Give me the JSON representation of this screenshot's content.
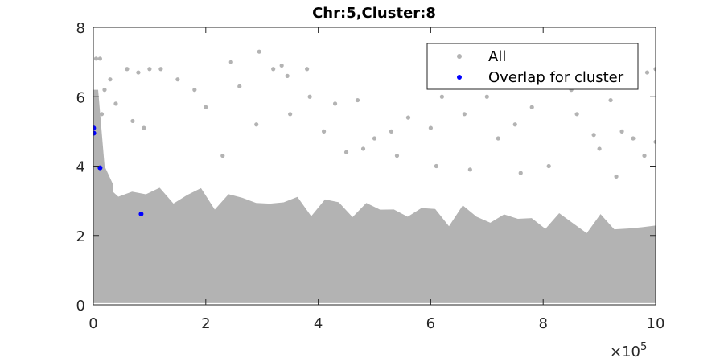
{
  "chart_data": {
    "type": "scatter",
    "title": "Chr:5,Cluster:8",
    "xlabel": "",
    "ylabel": "",
    "xlim": [
      0,
      1000000
    ],
    "ylim": [
      0,
      8
    ],
    "x_ticks": [
      0,
      200000,
      400000,
      600000,
      800000,
      1000000
    ],
    "x_tick_labels": [
      "0",
      "2",
      "4",
      "6",
      "8",
      "10"
    ],
    "y_ticks": [
      0,
      2,
      4,
      6,
      8
    ],
    "y_tick_labels": [
      "0",
      "2",
      "4",
      "6",
      "8"
    ],
    "x_exponent_label": {
      "base": "×10",
      "exponent": "5"
    },
    "grid": false,
    "legend_position": "top-right",
    "series": [
      {
        "name": "All",
        "color": "#b3b3b3",
        "values": [
          [
            5000,
            7.1
          ],
          [
            12000,
            7.1
          ],
          [
            30000,
            6.5
          ],
          [
            60000,
            6.8
          ],
          [
            80000,
            6.7
          ],
          [
            100000,
            6.8
          ],
          [
            120000,
            6.8
          ],
          [
            150000,
            6.5
          ],
          [
            245000,
            7.0
          ],
          [
            260000,
            6.3
          ],
          [
            295000,
            7.3
          ],
          [
            320000,
            6.8
          ],
          [
            335000,
            6.9
          ],
          [
            345000,
            6.6
          ],
          [
            380000,
            6.8
          ],
          [
            385000,
            6.0
          ],
          [
            410000,
            5.0
          ],
          [
            430000,
            5.8
          ],
          [
            470000,
            5.9
          ],
          [
            500000,
            4.8
          ],
          [
            530000,
            5.0
          ],
          [
            560000,
            5.4
          ],
          [
            600000,
            5.1
          ],
          [
            620000,
            6.0
          ],
          [
            660000,
            5.5
          ],
          [
            700000,
            6.0
          ],
          [
            720000,
            4.8
          ],
          [
            750000,
            5.2
          ],
          [
            780000,
            5.7
          ],
          [
            830000,
            6.5
          ],
          [
            850000,
            6.2
          ],
          [
            860000,
            5.5
          ],
          [
            875000,
            6.4
          ],
          [
            890000,
            4.9
          ],
          [
            900000,
            4.5
          ],
          [
            920000,
            5.9
          ],
          [
            940000,
            5.0
          ],
          [
            960000,
            4.8
          ],
          [
            985000,
            6.7
          ],
          [
            1000000,
            6.8
          ],
          [
            1000000,
            4.7
          ],
          [
            200000,
            5.7
          ],
          [
            180000,
            6.2
          ],
          [
            230000,
            4.3
          ],
          [
            450000,
            4.4
          ],
          [
            350000,
            5.5
          ],
          [
            290000,
            5.2
          ],
          [
            610000,
            4.0
          ],
          [
            670000,
            3.9
          ],
          [
            760000,
            3.8
          ],
          [
            810000,
            4.0
          ],
          [
            930000,
            3.7
          ],
          [
            980000,
            4.3
          ],
          [
            540000,
            4.3
          ],
          [
            480000,
            4.5
          ],
          [
            20000,
            6.2
          ],
          [
            40000,
            5.8
          ],
          [
            70000,
            5.3
          ],
          [
            90000,
            5.1
          ],
          [
            15000,
            5.5
          ]
        ]
      },
      {
        "name": "Overlap for cluster",
        "color": "#0000ff",
        "values": [
          [
            500,
            5.1
          ],
          [
            800,
            4.95
          ],
          [
            12000,
            3.95
          ],
          [
            85000,
            2.62
          ]
        ]
      }
    ]
  }
}
